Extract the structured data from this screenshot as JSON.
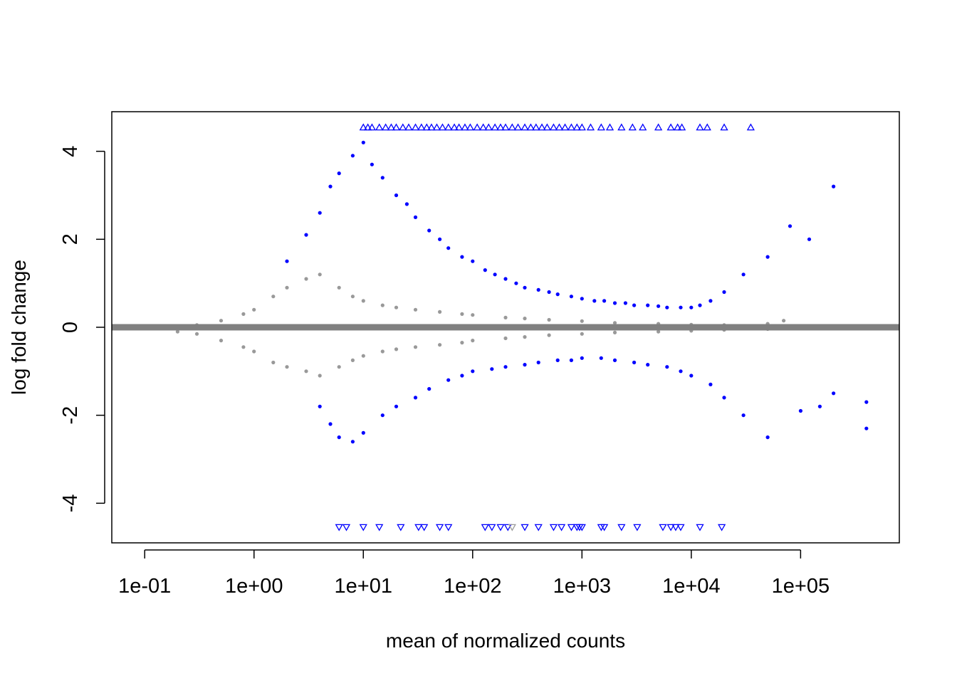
{
  "chart_data": {
    "type": "scatter",
    "title": "",
    "xlabel": "mean of normalized counts",
    "ylabel": "log fold change",
    "x_scale": "log10",
    "xlim": [
      0.05,
      800000
    ],
    "ylim": [
      -4.9,
      4.9
    ],
    "grid": false,
    "legend": "none",
    "x_ticks": [
      {
        "value": 0.1,
        "label": "1e-01"
      },
      {
        "value": 1,
        "label": "1e+00"
      },
      {
        "value": 10,
        "label": "1e+01"
      },
      {
        "value": 100,
        "label": "1e+02"
      },
      {
        "value": 1000,
        "label": "1e+03"
      },
      {
        "value": 10000,
        "label": "1e+04"
      },
      {
        "value": 100000,
        "label": "1e+05"
      }
    ],
    "y_ticks": [
      {
        "value": -4,
        "label": "-4"
      },
      {
        "value": -2,
        "label": "-2"
      },
      {
        "value": 0,
        "label": "0"
      },
      {
        "value": 2,
        "label": "2"
      },
      {
        "value": 4,
        "label": "4"
      }
    ],
    "reference_line": {
      "y": 0,
      "color": "#808080"
    },
    "colors": {
      "significant": "#0000FF",
      "not_significant": "#999999"
    },
    "series": [
      {
        "category": "significant",
        "x": [
          2,
          3,
          4,
          5,
          6,
          8,
          10,
          12,
          15,
          20,
          25,
          30,
          40,
          50,
          60,
          80,
          100,
          130,
          160,
          200,
          250,
          300,
          400,
          500,
          600,
          800,
          1000,
          1300,
          1600,
          2000,
          2500,
          3000,
          4000,
          5000,
          6000,
          8000,
          10000,
          12000,
          15000,
          20000,
          30000,
          50000,
          80000,
          120000,
          200000,
          400000
        ],
        "y": [
          1.5,
          2.1,
          2.6,
          3.2,
          3.5,
          3.9,
          4.2,
          3.7,
          3.4,
          3.0,
          2.8,
          2.5,
          2.2,
          2.0,
          1.8,
          1.6,
          1.5,
          1.3,
          1.2,
          1.1,
          1.0,
          0.9,
          0.85,
          0.8,
          0.75,
          0.7,
          0.65,
          0.6,
          0.6,
          0.55,
          0.55,
          0.5,
          0.5,
          0.48,
          0.45,
          0.45,
          0.45,
          0.5,
          0.6,
          0.8,
          1.2,
          1.6,
          2.3,
          2.0,
          3.2,
          -1.7
        ]
      },
      {
        "category": "significant",
        "x": [
          4,
          5,
          6,
          8,
          10,
          15,
          20,
          30,
          40,
          60,
          80,
          100,
          150,
          200,
          300,
          400,
          600,
          800,
          1000,
          1500,
          2000,
          3000,
          4000,
          6000,
          8000,
          10000,
          15000,
          20000,
          30000,
          50000,
          100000,
          150000,
          200000,
          400000
        ],
        "y": [
          -1.8,
          -2.2,
          -2.5,
          -2.6,
          -2.4,
          -2.0,
          -1.8,
          -1.6,
          -1.4,
          -1.2,
          -1.1,
          -1.0,
          -0.95,
          -0.9,
          -0.85,
          -0.8,
          -0.75,
          -0.75,
          -0.7,
          -0.7,
          -0.75,
          -0.8,
          -0.85,
          -0.9,
          -1.0,
          -1.1,
          -1.3,
          -1.6,
          -2.0,
          -2.5,
          -1.9,
          -1.8,
          -1.5,
          -2.3
        ]
      },
      {
        "category": "not_significant",
        "x": [
          0.2,
          0.3,
          0.5,
          0.8,
          1,
          1.5,
          2,
          3,
          4,
          6,
          8,
          10,
          15,
          20,
          30,
          50,
          80,
          100,
          200,
          300,
          500,
          1000,
          2000,
          5000,
          10000,
          20000,
          50000,
          70000
        ],
        "y": [
          0.0,
          0.05,
          0.15,
          0.3,
          0.4,
          0.7,
          0.9,
          1.1,
          1.2,
          0.9,
          0.7,
          0.6,
          0.5,
          0.45,
          0.4,
          0.35,
          0.3,
          0.28,
          0.22,
          0.2,
          0.17,
          0.14,
          0.1,
          0.08,
          0.06,
          0.05,
          0.08,
          0.15
        ]
      },
      {
        "category": "not_significant",
        "x": [
          0.2,
          0.3,
          0.5,
          0.8,
          1,
          1.5,
          2,
          3,
          4,
          6,
          8,
          10,
          15,
          20,
          30,
          50,
          80,
          100,
          200,
          300,
          500,
          1000,
          2000,
          5000,
          10000,
          20000,
          50000
        ],
        "y": [
          -0.1,
          -0.15,
          -0.3,
          -0.45,
          -0.55,
          -0.8,
          -0.9,
          -1.0,
          -1.1,
          -0.9,
          -0.75,
          -0.65,
          -0.55,
          -0.5,
          -0.45,
          -0.4,
          -0.35,
          -0.3,
          -0.25,
          -0.22,
          -0.18,
          -0.15,
          -0.12,
          -0.1,
          -0.08,
          -0.06,
          -0.04
        ]
      },
      {
        "category": "significant_clipped_up",
        "marker": "triangle-up",
        "y": 4.55,
        "x": [
          10,
          11,
          12,
          14,
          16,
          18,
          20,
          23,
          26,
          30,
          34,
          38,
          42,
          47,
          53,
          60,
          68,
          75,
          85,
          95,
          110,
          125,
          140,
          160,
          180,
          200,
          230,
          260,
          300,
          340,
          380,
          430,
          480,
          550,
          620,
          700,
          800,
          900,
          1000,
          1200,
          1500,
          1800,
          2300,
          2900,
          3600,
          5000,
          6500,
          7500,
          8200,
          12000,
          14000,
          20000,
          35000
        ]
      },
      {
        "category": "significant_clipped_down",
        "marker": "triangle-down",
        "y": -4.55,
        "x": [
          6,
          7,
          10,
          14,
          22,
          32,
          36,
          50,
          60,
          130,
          150,
          180,
          210,
          300,
          400,
          550,
          650,
          800,
          900,
          950,
          1000,
          1500,
          1600,
          2300,
          3200,
          5500,
          6500,
          7200,
          8000,
          12000,
          19000
        ]
      },
      {
        "category": "not_significant_clipped_down",
        "marker": "triangle-down",
        "y": -4.55,
        "x": [
          230
        ]
      }
    ]
  }
}
